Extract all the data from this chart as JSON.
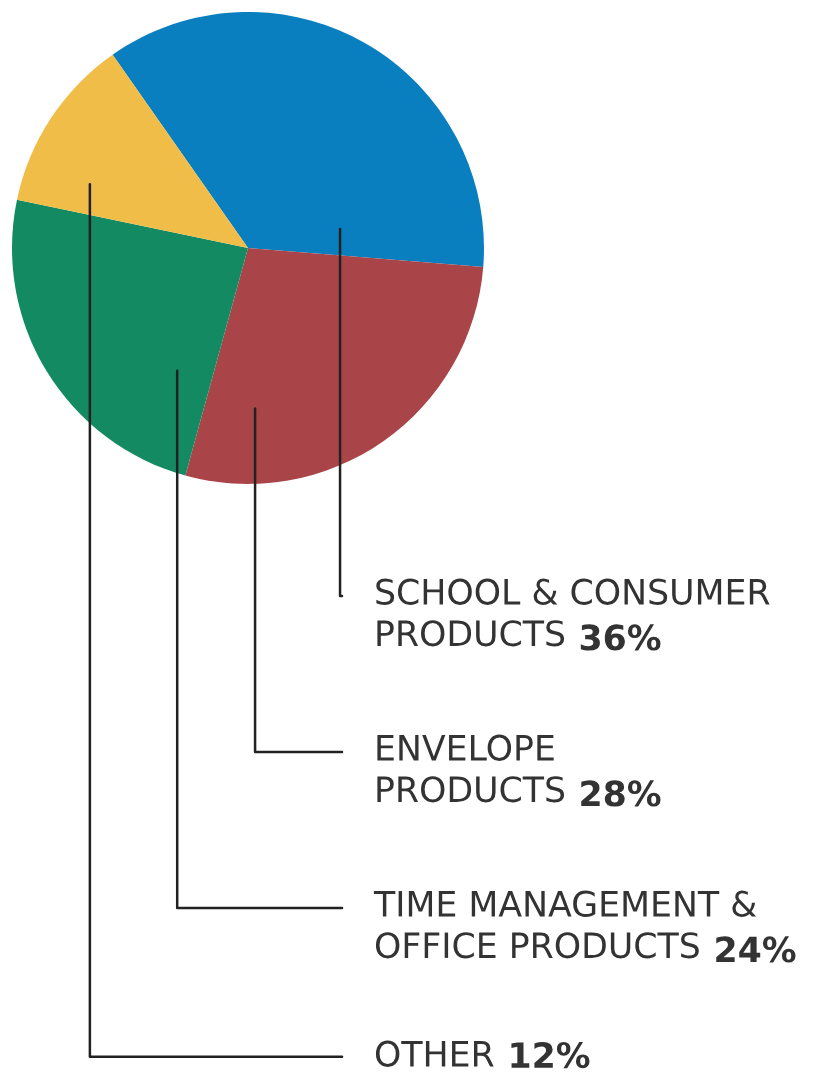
{
  "chart_data": {
    "type": "pie",
    "categories": [
      "SCHOOL & CONSUMER\nPRODUCTS",
      "ENVELOPE\nPRODUCTS",
      "TIME MANAGEMENT &\nOFFICE PRODUCTS",
      "OTHER"
    ],
    "values": [
      36,
      28,
      24,
      12
    ],
    "value_labels": [
      "36%",
      "28%",
      "24%",
      "12%"
    ],
    "colors": [
      "#0a7fc0",
      "#a94549",
      "#138a62",
      "#f0bd48"
    ]
  }
}
